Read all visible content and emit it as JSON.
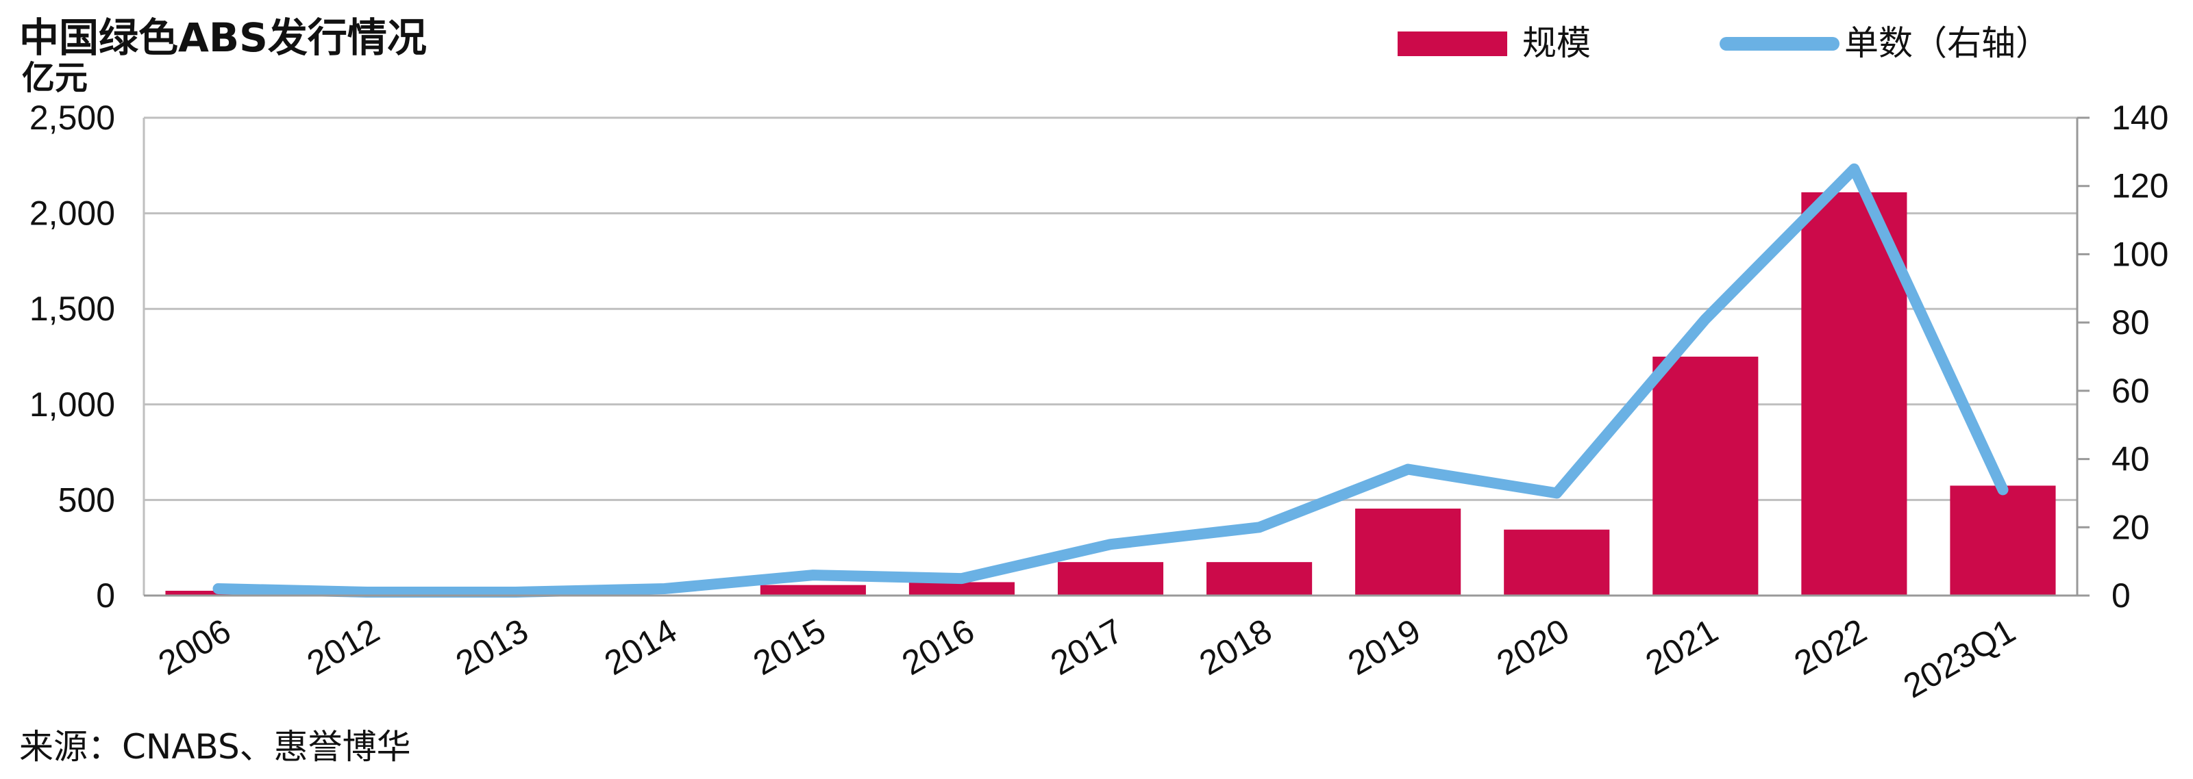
{
  "chart_data": {
    "type": "bar",
    "title": "中国绿色ABS发行情况",
    "ylabel": "亿元",
    "ylabel_right": "",
    "categories": [
      "2006",
      "2012",
      "2013",
      "2014",
      "2015",
      "2016",
      "2017",
      "2018",
      "2019",
      "2020",
      "2021",
      "2022",
      "2023Q1"
    ],
    "ylim": [
      0,
      2500
    ],
    "y_ticks": [
      "0",
      "500",
      "1,000",
      "1,500",
      "2,000",
      "2,500"
    ],
    "y_tick_values": [
      0,
      500,
      1000,
      1500,
      2000,
      2500
    ],
    "ylim_right": [
      0,
      140
    ],
    "y_ticks_right": [
      "0",
      "20",
      "40",
      "60",
      "80",
      "100",
      "120",
      "140"
    ],
    "y_tick_values_right": [
      0,
      20,
      40,
      60,
      80,
      100,
      120,
      140
    ],
    "series": [
      {
        "name": "规模",
        "type": "bar",
        "axis": "left",
        "color": "#cc0a4a",
        "values": [
          25,
          0,
          0,
          5,
          55,
          70,
          175,
          175,
          455,
          345,
          1250,
          2110,
          575
        ]
      },
      {
        "name": "单数（右轴）",
        "type": "line",
        "axis": "right",
        "color": "#6ab1e4",
        "values": [
          2,
          1,
          1,
          2,
          6,
          5,
          15,
          20,
          37,
          30,
          81,
          125,
          31
        ]
      }
    ],
    "grid": true,
    "legend_position": "top-right",
    "source": "来源：CNABS、惠誉博华"
  }
}
